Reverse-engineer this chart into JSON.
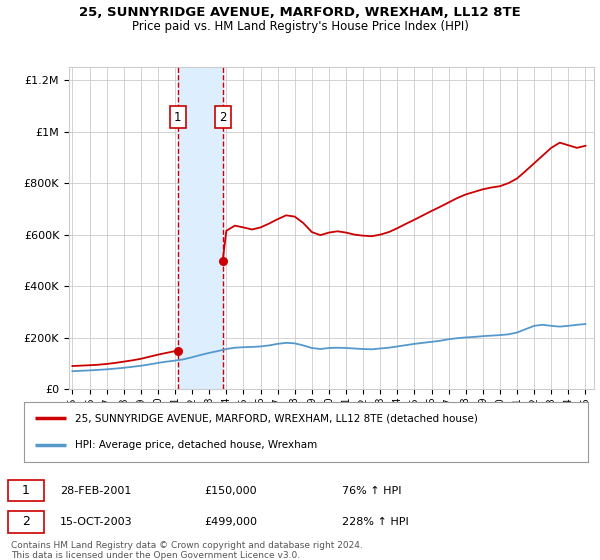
{
  "title": "25, SUNNYRIDGE AVENUE, MARFORD, WREXHAM, LL12 8TE",
  "subtitle": "Price paid vs. HM Land Registry's House Price Index (HPI)",
  "legend_line1": "25, SUNNYRIDGE AVENUE, MARFORD, WREXHAM, LL12 8TE (detached house)",
  "legend_line2": "HPI: Average price, detached house, Wrexham",
  "footnote": "Contains HM Land Registry data © Crown copyright and database right 2024.\nThis data is licensed under the Open Government Licence v3.0.",
  "marker1_label": "1",
  "marker1_date": "28-FEB-2001",
  "marker1_price": "£150,000",
  "marker1_hpi": "76% ↑ HPI",
  "marker1_x": 2001.16,
  "marker1_y": 150000,
  "marker2_label": "2",
  "marker2_date": "15-OCT-2003",
  "marker2_price": "£499,000",
  "marker2_hpi": "228% ↑ HPI",
  "marker2_x": 2003.79,
  "marker2_y": 499000,
  "xmin": 1994.8,
  "xmax": 2025.5,
  "ymin": 0,
  "ymax": 1250000,
  "yticks": [
    0,
    200000,
    400000,
    600000,
    800000,
    1000000,
    1200000
  ],
  "ylabels": [
    "£0",
    "£200K",
    "£400K",
    "£600K",
    "£800K",
    "£1M",
    "£1.2M"
  ],
  "xticks": [
    1995,
    1996,
    1997,
    1998,
    1999,
    2000,
    2001,
    2002,
    2003,
    2004,
    2005,
    2006,
    2007,
    2008,
    2009,
    2010,
    2011,
    2012,
    2013,
    2014,
    2015,
    2016,
    2017,
    2018,
    2019,
    2020,
    2021,
    2022,
    2023,
    2024,
    2025
  ],
  "red_color": "#cc0000",
  "blue_color": "#5599cc",
  "shade_color": "#ddeeff",
  "background_color": "#ffffff",
  "grid_color": "#cccccc",
  "hpi_x": [
    1995,
    1995.5,
    1996,
    1996.5,
    1997,
    1997.5,
    1998,
    1998.5,
    1999,
    1999.5,
    2000,
    2000.5,
    2001,
    2001.5,
    2002,
    2002.5,
    2003,
    2003.5,
    2004,
    2004.5,
    2005,
    2005.5,
    2006,
    2006.5,
    2007,
    2007.5,
    2008,
    2008.5,
    2009,
    2009.5,
    2010,
    2010.5,
    2011,
    2011.5,
    2012,
    2012.5,
    2013,
    2013.5,
    2014,
    2014.5,
    2015,
    2015.5,
    2016,
    2016.5,
    2017,
    2017.5,
    2018,
    2018.5,
    2019,
    2019.5,
    2020,
    2020.5,
    2021,
    2021.5,
    2022,
    2022.5,
    2023,
    2023.5,
    2024,
    2024.5,
    2025
  ],
  "hpi_y": [
    70000,
    71500,
    73000,
    75000,
    77000,
    80000,
    83000,
    87000,
    91000,
    96000,
    102000,
    107000,
    111000,
    116000,
    124000,
    133000,
    141000,
    148000,
    156000,
    161000,
    163000,
    164000,
    166000,
    170000,
    176000,
    180000,
    178000,
    170000,
    160000,
    156000,
    160000,
    161000,
    160000,
    158000,
    156000,
    155000,
    158000,
    161000,
    166000,
    171000,
    176000,
    180000,
    184000,
    188000,
    194000,
    198000,
    201000,
    203000,
    206000,
    208000,
    210000,
    213000,
    220000,
    233000,
    246000,
    250000,
    246000,
    243000,
    246000,
    250000,
    253000
  ],
  "price_seg1_x": [
    1995,
    1995.5,
    1996,
    1996.5,
    1997,
    1997.5,
    1998,
    1998.5,
    1999,
    1999.5,
    2000,
    2000.5,
    2001.16
  ],
  "price_seg1_y": [
    90000,
    91500,
    93000,
    95000,
    98000,
    102000,
    107000,
    112000,
    118000,
    126000,
    134000,
    141000,
    150000
  ],
  "price_seg2_x": [
    2003.79,
    2004,
    2004.5,
    2005,
    2005.5,
    2006,
    2006.5,
    2007,
    2007.5,
    2008,
    2008.5,
    2009,
    2009.5,
    2010,
    2010.5,
    2011,
    2011.5,
    2012,
    2012.5,
    2013,
    2013.5,
    2014,
    2014.5,
    2015,
    2015.5,
    2016,
    2016.5,
    2017,
    2017.5,
    2018,
    2018.5,
    2019,
    2019.5,
    2020,
    2020.5,
    2021,
    2021.5,
    2022,
    2022.5,
    2023,
    2023.5,
    2024,
    2024.5,
    2025
  ],
  "price_seg2_y": [
    499000,
    615000,
    635000,
    628000,
    620000,
    628000,
    643000,
    660000,
    675000,
    670000,
    645000,
    610000,
    598000,
    608000,
    613000,
    608000,
    600000,
    596000,
    594000,
    600000,
    610000,
    625000,
    642000,
    658000,
    675000,
    692000,
    708000,
    725000,
    742000,
    756000,
    766000,
    776000,
    783000,
    788000,
    800000,
    818000,
    847000,
    877000,
    907000,
    937000,
    957000,
    947000,
    937000,
    945000
  ]
}
